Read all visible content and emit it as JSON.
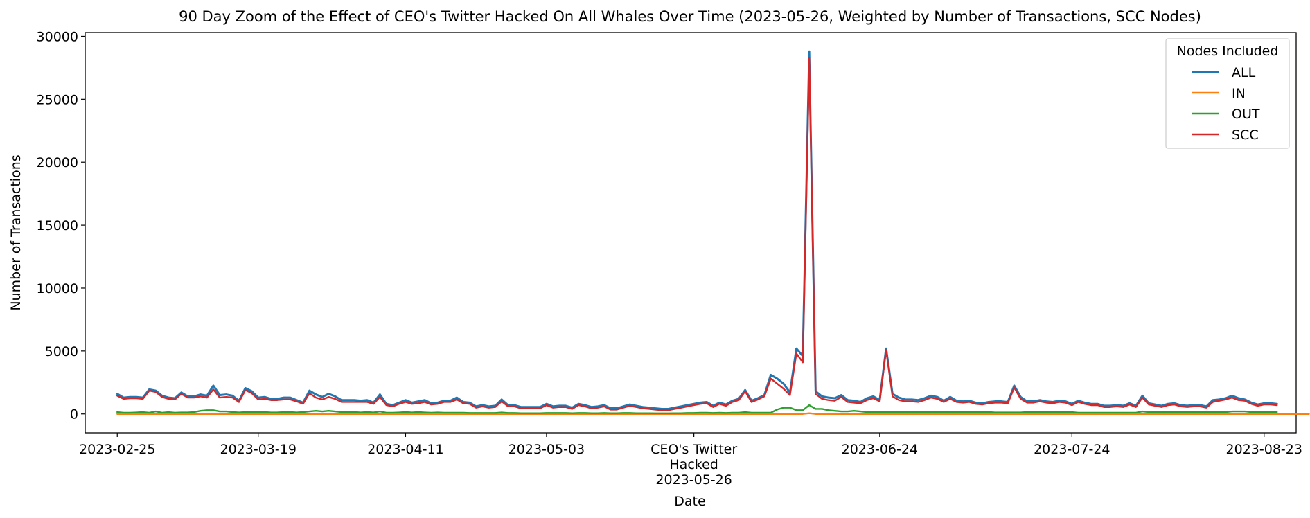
{
  "chart_data": {
    "type": "line",
    "title": "90 Day Zoom of the Effect of CEO's Twitter Hacked On All Whales Over Time (2023-05-26, Weighted by Number of Transactions, SCC Nodes)",
    "xlabel": "Date",
    "ylabel": "Number of Transactions",
    "ylim": [
      -1500,
      30300
    ],
    "xlim": [
      "2023-02-20",
      "2023-08-28"
    ],
    "yticks": [
      "0",
      "5000",
      "10000",
      "15000",
      "20000",
      "25000",
      "30000"
    ],
    "xticks": [
      [
        "2023-02-25"
      ],
      [
        "2023-03-19"
      ],
      [
        "2023-04-11"
      ],
      [
        "2023-05-03"
      ],
      [
        "CEO's Twitter",
        "Hacked",
        "2023-05-26"
      ],
      [
        "2023-06-24"
      ],
      [
        "2023-07-24"
      ],
      [
        "2023-08-23"
      ]
    ],
    "grid": false,
    "legend": {
      "title": "Nodes Included",
      "placement": "top-right"
    },
    "x_start": "2023-02-25",
    "x_step_days": 1,
    "series": [
      {
        "name": "ALL",
        "color": "#1f77b4",
        "values": [
          1600,
          1300,
          1350,
          1350,
          1300,
          1950,
          1850,
          1450,
          1300,
          1250,
          1700,
          1400,
          1400,
          1550,
          1450,
          2250,
          1500,
          1550,
          1450,
          1050,
          2050,
          1800,
          1300,
          1350,
          1200,
          1200,
          1300,
          1300,
          1100,
          900,
          1850,
          1550,
          1350,
          1600,
          1400,
          1100,
          1100,
          1100,
          1050,
          1100,
          900,
          1550,
          800,
          700,
          900,
          1100,
          900,
          1000,
          1100,
          850,
          900,
          1050,
          1050,
          1300,
          950,
          900,
          600,
          700,
          600,
          650,
          1150,
          700,
          700,
          550,
          550,
          550,
          550,
          800,
          600,
          650,
          650,
          500,
          800,
          700,
          550,
          600,
          700,
          450,
          450,
          600,
          750,
          650,
          550,
          500,
          450,
          400,
          400,
          500,
          600,
          700,
          800,
          900,
          950,
          650,
          900,
          750,
          1050,
          1200,
          1900,
          1050,
          1250,
          1500,
          3100,
          2800,
          2400,
          1700,
          5200,
          4600,
          28800,
          1800,
          1400,
          1300,
          1250,
          1500,
          1100,
          1050,
          950,
          1250,
          1400,
          1100,
          5200,
          1600,
          1300,
          1150,
          1150,
          1100,
          1250,
          1450,
          1350,
          1050,
          1350,
          1050,
          1000,
          1050,
          900,
          850,
          950,
          1000,
          1000,
          950,
          2250,
          1350,
          1000,
          1000,
          1100,
          1000,
          950,
          1050,
          1000,
          800,
          1050,
          900,
          800,
          800,
          650,
          650,
          700,
          650,
          850,
          650,
          1450,
          850,
          750,
          650,
          800,
          850,
          700,
          650,
          700,
          700,
          600,
          1100,
          1150,
          1250,
          1450,
          1250,
          1150,
          900,
          750,
          850,
          850,
          800
        ],
        "line_width": 3
      },
      {
        "name": "IN",
        "color": "#ff7f0e",
        "values": [
          0,
          0,
          0,
          0,
          0,
          0,
          0,
          0,
          0,
          0,
          0,
          0,
          0,
          0,
          0,
          0,
          0,
          0,
          0,
          0,
          0,
          0,
          0,
          0,
          0,
          0,
          0,
          0,
          0,
          0,
          0,
          0,
          0,
          0,
          0,
          0,
          0,
          0,
          0,
          0,
          0,
          0,
          0,
          0,
          0,
          0,
          0,
          0,
          0,
          0,
          0,
          0,
          0,
          0,
          0,
          0,
          0,
          0,
          0,
          0,
          0,
          0,
          0,
          0,
          0,
          0,
          0,
          0,
          0,
          0,
          0,
          0,
          0,
          0,
          0,
          0,
          0,
          0,
          0,
          0,
          0,
          0,
          0,
          0,
          0,
          0,
          0,
          0,
          0,
          0,
          0,
          0,
          0,
          0,
          0,
          0,
          0,
          0,
          0,
          0,
          0,
          0,
          0,
          0,
          0,
          0,
          0,
          0,
          60,
          0,
          0,
          0,
          0,
          0,
          0,
          0,
          0,
          0,
          0,
          0,
          0,
          0,
          0,
          0,
          0,
          0,
          0,
          0,
          0,
          0,
          0,
          0,
          0,
          0,
          0,
          0,
          0,
          0,
          0,
          0,
          0,
          0,
          0,
          0,
          0,
          0,
          0,
          0,
          0,
          0,
          0,
          0,
          0,
          0,
          0,
          0,
          0,
          0,
          0,
          0,
          0,
          0,
          0,
          0,
          0,
          0,
          0,
          0,
          0,
          0,
          0,
          0,
          0,
          0,
          0,
          0,
          0,
          0,
          0,
          0,
          0,
          0,
          0,
          0,
          0,
          0,
          0
        ],
        "line_width": 2.4
      },
      {
        "name": "OUT",
        "color": "#2ca02c",
        "values": [
          150,
          100,
          100,
          120,
          150,
          100,
          200,
          100,
          150,
          100,
          120,
          120,
          150,
          250,
          300,
          300,
          200,
          200,
          150,
          120,
          150,
          150,
          150,
          150,
          120,
          120,
          150,
          150,
          120,
          150,
          200,
          250,
          200,
          250,
          200,
          150,
          150,
          150,
          120,
          150,
          120,
          200,
          100,
          100,
          120,
          150,
          120,
          150,
          120,
          100,
          120,
          100,
          100,
          100,
          100,
          80,
          80,
          80,
          80,
          80,
          120,
          80,
          80,
          60,
          60,
          60,
          60,
          80,
          80,
          80,
          80,
          60,
          80,
          80,
          60,
          60,
          80,
          60,
          60,
          80,
          80,
          60,
          60,
          60,
          50,
          50,
          50,
          60,
          60,
          80,
          80,
          100,
          100,
          80,
          100,
          80,
          100,
          100,
          150,
          100,
          100,
          100,
          100,
          350,
          500,
          500,
          300,
          300,
          700,
          400,
          400,
          300,
          250,
          200,
          200,
          250,
          200,
          150,
          150,
          150,
          150,
          150,
          150,
          150,
          150,
          150,
          150,
          150,
          150,
          150,
          150,
          150,
          150,
          150,
          150,
          150,
          150,
          120,
          120,
          120,
          120,
          120,
          150,
          150,
          150,
          150,
          150,
          150,
          150,
          150,
          100,
          100,
          100,
          100,
          100,
          100,
          100,
          100,
          100,
          100,
          200,
          150,
          150,
          150,
          150,
          150,
          150,
          150,
          150,
          150,
          150,
          150,
          150,
          150,
          200,
          200,
          200,
          150,
          150,
          150,
          150,
          150
        ],
        "line_width": 2.4
      },
      {
        "name": "SCC",
        "color": "#d62728",
        "values": [
          1450,
          1200,
          1250,
          1250,
          1200,
          1850,
          1750,
          1350,
          1200,
          1150,
          1600,
          1300,
          1300,
          1400,
          1300,
          1950,
          1300,
          1350,
          1300,
          950,
          1900,
          1650,
          1150,
          1200,
          1100,
          1100,
          1150,
          1150,
          1000,
          800,
          1650,
          1300,
          1150,
          1350,
          1200,
          950,
          950,
          950,
          950,
          950,
          800,
          1350,
          700,
          600,
          800,
          950,
          800,
          850,
          950,
          750,
          800,
          950,
          950,
          1150,
          850,
          800,
          500,
          600,
          500,
          550,
          1000,
          600,
          600,
          450,
          450,
          450,
          450,
          700,
          500,
          550,
          550,
          400,
          700,
          600,
          450,
          500,
          600,
          350,
          350,
          500,
          650,
          550,
          450,
          400,
          350,
          300,
          300,
          400,
          500,
          600,
          700,
          800,
          850,
          550,
          800,
          650,
          950,
          1100,
          1800,
          950,
          1150,
          1400,
          2800,
          2400,
          2000,
          1500,
          4800,
          4100,
          28300,
          1600,
          1200,
          1100,
          1050,
          1350,
          950,
          900,
          850,
          1100,
          1250,
          1000,
          5100,
          1400,
          1100,
          1000,
          1000,
          950,
          1100,
          1300,
          1200,
          950,
          1200,
          950,
          900,
          950,
          800,
          750,
          850,
          900,
          900,
          850,
          2100,
          1200,
          900,
          900,
          1000,
          900,
          850,
          950,
          900,
          700,
          950,
          800,
          700,
          700,
          550,
          550,
          600,
          550,
          750,
          550,
          1300,
          750,
          650,
          550,
          700,
          750,
          600,
          550,
          600,
          600,
          500,
          950,
          1050,
          1150,
          1300,
          1100,
          1050,
          800,
          650,
          750,
          750,
          700
        ],
        "line_width": 2.4
      }
    ]
  }
}
